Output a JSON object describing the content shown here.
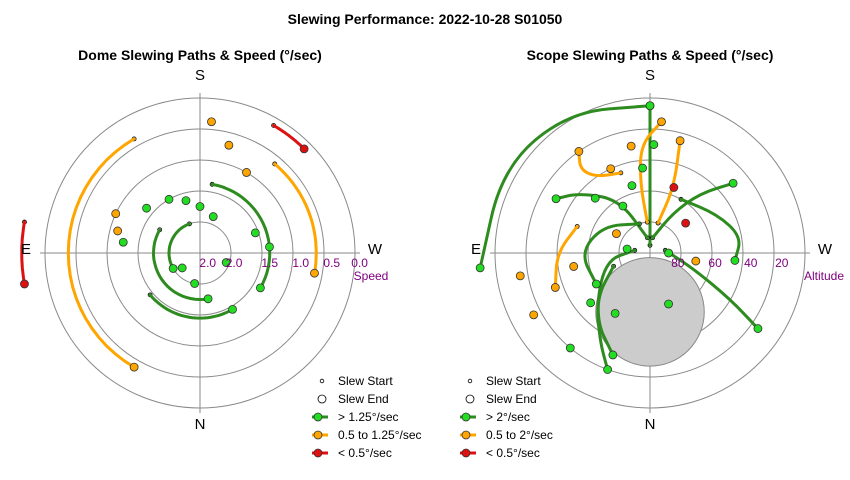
{
  "title": "Slewing Performance: 2022-10-28 S01050",
  "colors": {
    "fast": "#2e8b1f",
    "fast_dot": "#22dd22",
    "mid": "#ffa500",
    "slow": "#dd1111",
    "ring": "#8a8a8a",
    "tick": "#800080",
    "horizon": "#cccccc"
  },
  "chart_data": [
    {
      "type": "polar",
      "title": "Dome Slewing Paths & Speed (°/sec)",
      "directions": {
        "top": "S",
        "bottom": "N",
        "left": "E",
        "right": "W"
      },
      "radial_axis_label": "Speed",
      "radial_tick_labels": [
        "2.0",
        "2.0",
        "1.5",
        "1.0",
        "0.5",
        "0.0"
      ],
      "legend": [
        {
          "marker": "start",
          "label": "Slew Start"
        },
        {
          "marker": "end",
          "label": "Slew End"
        },
        {
          "marker": "fast",
          "label": "> 1.25°/sec"
        },
        {
          "marker": "mid",
          "label": "0.5 to 1.25°/sec"
        },
        {
          "marker": "slow",
          "label": "< 0.5°/sec"
        }
      ],
      "paths": [
        {
          "speed": "slow",
          "radius": 1.15,
          "az": [
            80,
            100
          ]
        },
        {
          "speed": "mid",
          "radius": 0.85,
          "az": [
            30,
            150
          ]
        },
        {
          "speed": "mid",
          "radius": 0.75,
          "az": [
            -40,
            -100
          ]
        },
        {
          "speed": "fast",
          "radius": 0.3,
          "az": [
            60,
            190
          ]
        },
        {
          "speed": "fast",
          "radius": 0.42,
          "az": [
            130,
            210
          ]
        },
        {
          "speed": "fast",
          "radius": 0.45,
          "az": [
            -10,
            -120
          ]
        },
        {
          "speed": "fast",
          "radius": 0.2,
          "az": [
            20,
            120
          ]
        },
        {
          "speed": "slow",
          "radius": 0.95,
          "az": [
            -30,
            -45
          ]
        }
      ],
      "points": [
        {
          "speed": "mid",
          "radius": 0.6,
          "az": 65
        },
        {
          "speed": "mid",
          "radius": 0.55,
          "az": 75
        },
        {
          "speed": "fast",
          "radius": 0.5,
          "az": 82
        },
        {
          "speed": "fast",
          "radius": 0.45,
          "az": 50
        },
        {
          "speed": "fast",
          "radius": 0.4,
          "az": 30
        },
        {
          "speed": "fast",
          "radius": 0.35,
          "az": 15
        },
        {
          "speed": "fast",
          "radius": 0.3,
          "az": 0
        },
        {
          "speed": "fast",
          "radius": 0.25,
          "az": -20
        },
        {
          "speed": "fast",
          "radius": 0.38,
          "az": -70
        },
        {
          "speed": "fast",
          "radius": 0.45,
          "az": -85
        },
        {
          "speed": "mid",
          "radius": 0.85,
          "az": -5
        },
        {
          "speed": "mid",
          "radius": 0.72,
          "az": -15
        },
        {
          "speed": "mid",
          "radius": 0.6,
          "az": -30
        },
        {
          "speed": "fast",
          "radius": 0.18,
          "az": -110
        },
        {
          "speed": "fast",
          "radius": 0.15,
          "az": 130
        },
        {
          "speed": "fast",
          "radius": 0.2,
          "az": 170
        }
      ]
    },
    {
      "type": "polar",
      "title": "Scope Slewing Paths & Speed (°/sec)",
      "directions": {
        "top": "S",
        "bottom": "N",
        "left": "E",
        "right": "W"
      },
      "radial_axis_label": "Altitude",
      "radial_tick_labels": [
        "80",
        "60",
        "40",
        "20"
      ],
      "legend": [
        {
          "marker": "start",
          "label": "Slew Start"
        },
        {
          "marker": "end",
          "label": "Slew End"
        },
        {
          "marker": "fast",
          "label": "> 2°/sec"
        },
        {
          "marker": "mid",
          "label": "0.5 to 2°/sec"
        },
        {
          "marker": "slow",
          "label": "< 0.5°/sec"
        }
      ],
      "horizon_block": {
        "az": 180,
        "radius": 0.38,
        "size": 0.35
      },
      "paths": [
        {
          "speed": "fast",
          "pts": [
            [
              0,
              0.05
            ],
            [
              0,
              0.3
            ],
            [
              0,
              0.6
            ],
            [
              0,
              0.95
            ]
          ]
        },
        {
          "speed": "fast",
          "pts": [
            [
              0,
              0.95
            ],
            [
              30,
              1.05
            ],
            [
              60,
              1.1
            ],
            [
              95,
              1.1
            ]
          ]
        },
        {
          "speed": "fast",
          "pts": [
            [
              -10,
              0.1
            ],
            [
              -30,
              0.3
            ],
            [
              -40,
              0.5
            ],
            [
              -50,
              0.7
            ]
          ]
        },
        {
          "speed": "fast",
          "pts": [
            [
              10,
              0.1
            ],
            [
              30,
              0.4
            ],
            [
              50,
              0.6
            ],
            [
              60,
              0.7
            ]
          ]
        },
        {
          "speed": "fast",
          "pts": [
            [
              80,
              0.1
            ],
            [
              100,
              0.3
            ],
            [
              140,
              0.55
            ],
            [
              160,
              0.7
            ]
          ]
        },
        {
          "speed": "fast",
          "pts": [
            [
              -80,
              0.1
            ],
            [
              -110,
              0.3
            ],
            [
              -120,
              0.6
            ],
            [
              -125,
              0.85
            ]
          ]
        },
        {
          "speed": "fast",
          "pts": [
            [
              20,
              0.2
            ],
            [
              60,
              0.35
            ],
            [
              90,
              0.45
            ],
            [
              120,
              0.4
            ]
          ]
        },
        {
          "speed": "fast",
          "pts": [
            [
              -30,
              0.4
            ],
            [
              -60,
              0.5
            ],
            [
              -80,
              0.6
            ],
            [
              -95,
              0.55
            ]
          ]
        },
        {
          "speed": "fast",
          "pts": [
            [
              110,
              0.25
            ],
            [
              130,
              0.45
            ],
            [
              150,
              0.65
            ],
            [
              160,
              0.8
            ]
          ]
        },
        {
          "speed": "mid",
          "pts": [
            [
              5,
              0.2
            ],
            [
              8,
              0.45
            ],
            [
              5,
              0.7
            ],
            [
              -5,
              0.85
            ]
          ]
        },
        {
          "speed": "mid",
          "pts": [
            [
              20,
              0.55
            ],
            [
              35,
              0.6
            ],
            [
              40,
              0.7
            ],
            [
              35,
              0.8
            ]
          ]
        },
        {
          "speed": "mid",
          "pts": [
            [
              -15,
              0.2
            ],
            [
              -20,
              0.45
            ],
            [
              -15,
              0.75
            ]
          ]
        },
        {
          "speed": "mid",
          "pts": [
            [
              70,
              0.5
            ],
            [
              90,
              0.6
            ],
            [
              110,
              0.65
            ]
          ]
        }
      ],
      "points": [
        {
          "speed": "fast",
          "radius": 0.95,
          "az": 0
        },
        {
          "speed": "fast",
          "radius": 0.7,
          "az": -2
        },
        {
          "speed": "fast",
          "radius": 0.55,
          "az": 5
        },
        {
          "speed": "mid",
          "radius": 0.7,
          "az": 10
        },
        {
          "speed": "mid",
          "radius": 0.6,
          "az": 25
        },
        {
          "speed": "fast",
          "radius": 0.45,
          "az": 15
        },
        {
          "speed": "slow",
          "radius": 0.45,
          "az": -20
        },
        {
          "speed": "fast",
          "radius": 0.5,
          "az": 45
        },
        {
          "speed": "fast",
          "radius": 0.35,
          "az": 30
        },
        {
          "speed": "mid",
          "radius": 0.25,
          "az": 60
        },
        {
          "speed": "fast",
          "radius": 0.15,
          "az": 80
        },
        {
          "speed": "fast",
          "radius": 0.12,
          "az": -90
        },
        {
          "speed": "mid",
          "radius": 0.85,
          "az": 118
        },
        {
          "speed": "mid",
          "radius": 0.85,
          "az": 100
        },
        {
          "speed": "fast",
          "radius": 0.5,
          "az": 130
        },
        {
          "speed": "mid",
          "radius": 0.3,
          "az": -100
        },
        {
          "speed": "fast",
          "radius": 0.8,
          "az": 140
        },
        {
          "speed": "mid",
          "radius": 0.5,
          "az": 100
        },
        {
          "speed": "fast",
          "radius": 0.45,
          "az": 150
        },
        {
          "speed": "fast",
          "radius": 0.35,
          "az": 200
        },
        {
          "speed": "slow",
          "radius": 0.3,
          "az": -50
        }
      ]
    }
  ]
}
